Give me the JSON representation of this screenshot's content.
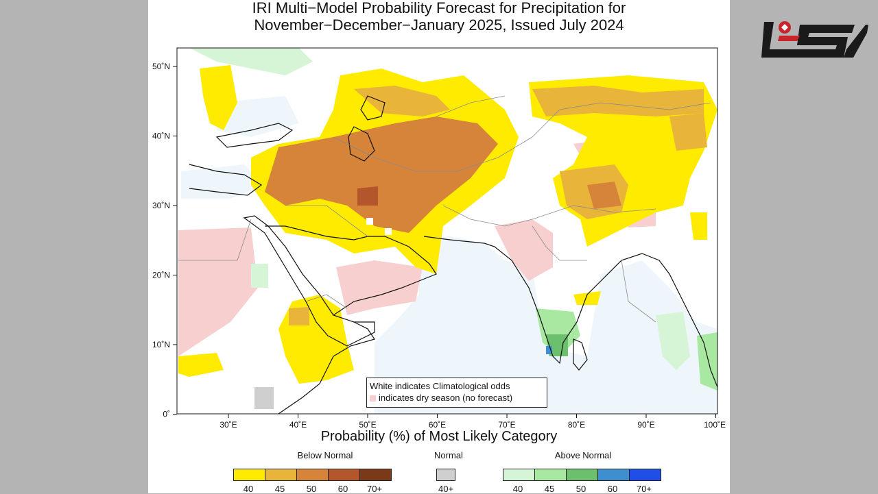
{
  "title": {
    "line1": "IRI Multi−Model Probability Forecast for Precipitation for",
    "line2": "November−December−January 2025, Issued July 2024"
  },
  "map": {
    "lat_labels": [
      "50˚N",
      "40˚N",
      "30˚N",
      "20˚N",
      "10˚N",
      "0˚"
    ],
    "lon_labels": [
      "30˚E",
      "40˚E",
      "50˚E",
      "60˚E",
      "70˚E",
      "80˚E",
      "90˚E",
      "100˚E"
    ],
    "note_line1": "White indicates Climatological odds",
    "note_line2": "indicates dry season (no forecast)"
  },
  "axis_title": "Probability (%) of Most Likely Category",
  "legend": {
    "below": {
      "label": "Below Normal",
      "ticks": [
        "40",
        "45",
        "50",
        "60",
        "70+"
      ],
      "colors": [
        "#ffeb00",
        "#e8b43a",
        "#d6843a",
        "#b4562c",
        "#7a3a18"
      ]
    },
    "normal": {
      "label": "Normal",
      "ticks": [
        "40+"
      ],
      "colors": [
        "#cfcfcf"
      ]
    },
    "above": {
      "label": "Above Normal",
      "ticks": [
        "40",
        "45",
        "50",
        "60",
        "70+"
      ],
      "colors": [
        "#d6f5d6",
        "#a8e8a0",
        "#6cbf6c",
        "#3f8fd0",
        "#1f4fe8"
      ]
    }
  },
  "colors": {
    "dry_season": "#f8cfcf",
    "ocean_clim": "#eef6fb",
    "logo_red": "#c8242c",
    "logo_black": "#1a1a1a"
  }
}
